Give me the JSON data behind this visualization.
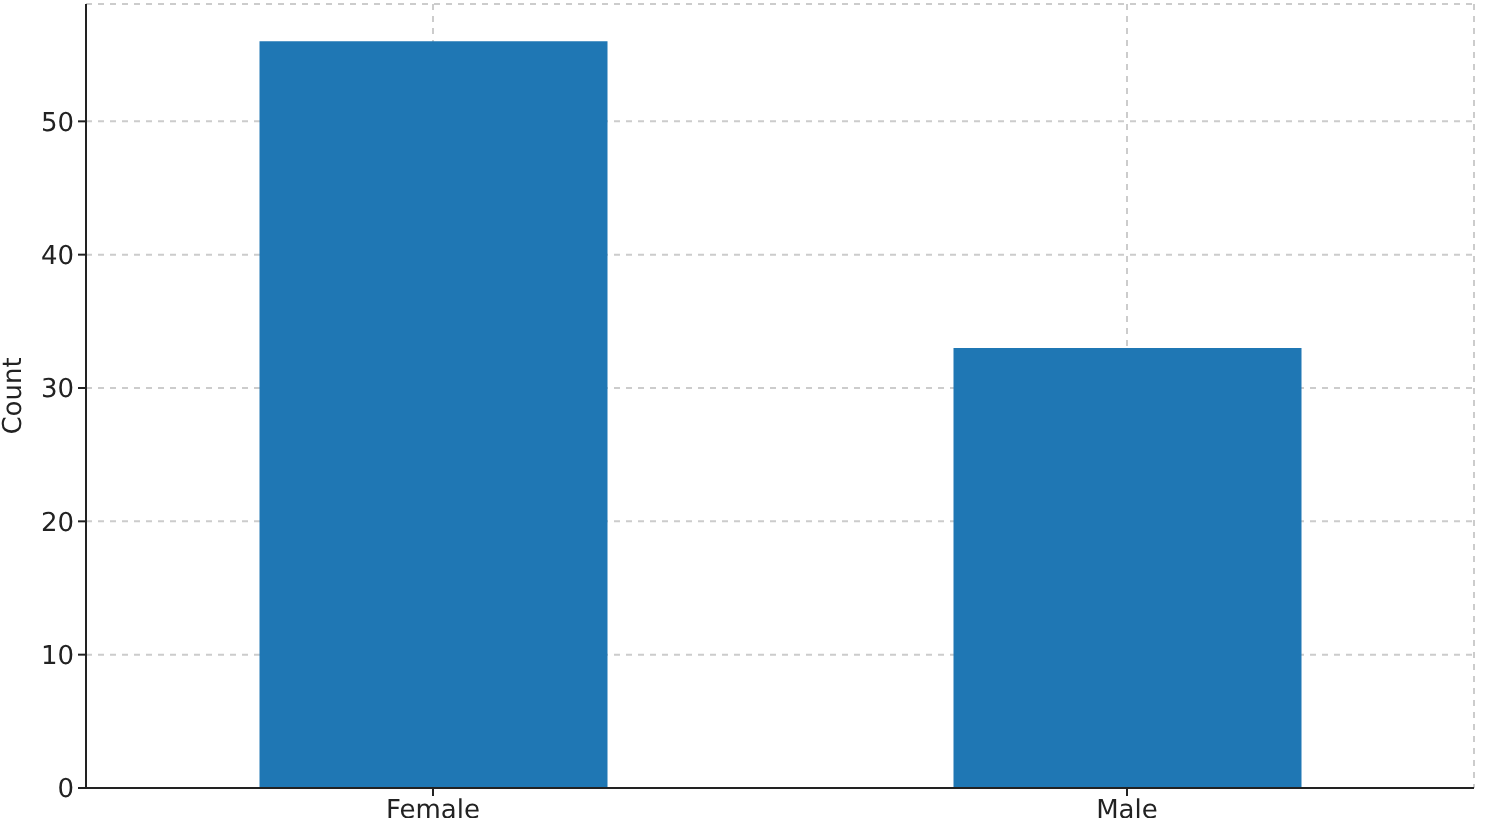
{
  "chart_data": {
    "type": "bar",
    "ylabel": "Count",
    "categories": [
      "Female",
      "Male"
    ],
    "values": [
      56,
      33
    ],
    "color": "#1f77b4",
    "ylim": [
      0,
      58.8
    ],
    "yticks": [
      0,
      10,
      20,
      30,
      40,
      50
    ],
    "grid": true
  }
}
